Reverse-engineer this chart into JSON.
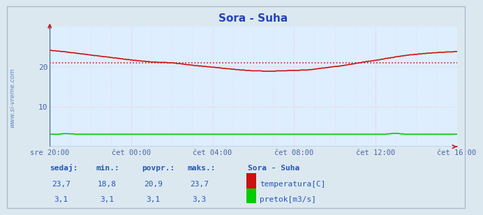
{
  "title": "Sora - Suha",
  "bg_color": "#dce8f0",
  "plot_bg_color": "#ddeeff",
  "grid_color_v": "#ffbbbb",
  "grid_color_h": "#ffbbbb",
  "axis_color": "#4466aa",
  "title_color": "#2244bb",
  "watermark": "www.si-vreme.com",
  "watermark_color": "#4477bb",
  "x_labels": [
    "sre 20:00",
    "čet 00:00",
    "čet 04:00",
    "čet 08:00",
    "čet 12:00",
    "čet 16:00"
  ],
  "x_ticks_norm": [
    0.0,
    0.2,
    0.4,
    0.6,
    0.8,
    1.0
  ],
  "ylim": [
    0,
    30
  ],
  "yticks": [
    10,
    20
  ],
  "avg_line": 20.9,
  "avg_line_color": "#cc2222",
  "temp_color": "#cc1111",
  "flow_color": "#00cc00",
  "legend_title": "Sora - Suha",
  "stats_labels": [
    "sedaj:",
    "min.:",
    "povpr.:",
    "maks.:"
  ],
  "stats_temp": [
    "23,7",
    "18,8",
    "20,9",
    "23,7"
  ],
  "stats_flow": [
    "3,1",
    "3,1",
    "3,1",
    "3,3"
  ],
  "stats_color": "#2255bb",
  "n_points": 288,
  "key_t": [
    0,
    0.04,
    0.08,
    0.12,
    0.16,
    0.2,
    0.25,
    0.3,
    0.35,
    0.38,
    0.42,
    0.46,
    0.5,
    0.54,
    0.57,
    0.6,
    0.63,
    0.65,
    0.68,
    0.72,
    0.76,
    0.8,
    0.84,
    0.88,
    0.92,
    0.96,
    1.0
  ],
  "key_v": [
    24.0,
    23.6,
    23.1,
    22.6,
    22.1,
    21.6,
    21.1,
    20.9,
    20.3,
    20.0,
    19.6,
    19.2,
    18.9,
    18.8,
    18.9,
    19.0,
    19.1,
    19.3,
    19.7,
    20.2,
    20.9,
    21.5,
    22.2,
    22.8,
    23.2,
    23.5,
    23.7
  ]
}
